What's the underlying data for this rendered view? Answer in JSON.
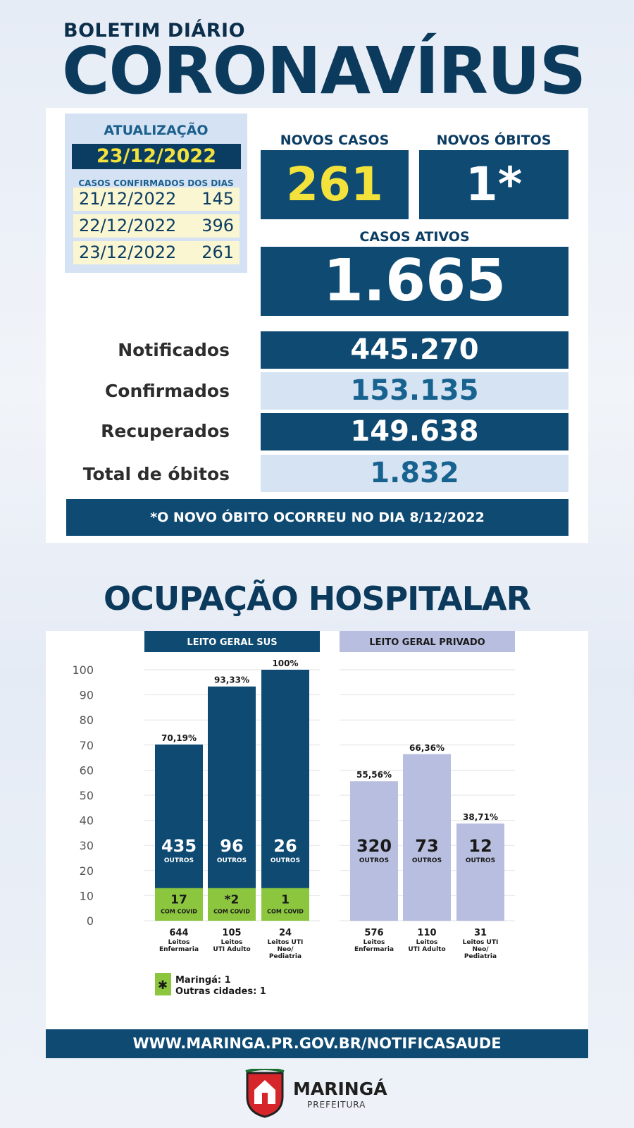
{
  "header": {
    "top_label": "BOLETIM DIÁRIO",
    "title": "CORONAVÍRUS"
  },
  "update": {
    "title": "ATUALIZAÇÃO",
    "date": "23/12/2022",
    "sub": "CASOS CONFIRMADOS DOS DIAS",
    "rows": [
      {
        "date": "21/12/2022",
        "value": "145"
      },
      {
        "date": "22/12/2022",
        "value": "396"
      },
      {
        "date": "23/12/2022",
        "value": "261"
      }
    ]
  },
  "new_cases": {
    "label": "NOVOS CASOS",
    "value": "261"
  },
  "new_deaths": {
    "label": "NOVOS ÓBITOS",
    "value": "1*"
  },
  "active": {
    "label": "CASOS ATIVOS",
    "value": "1.665"
  },
  "stats": [
    {
      "label": "Notificados",
      "value": "445.270"
    },
    {
      "label": "Confirmados",
      "value": "153.135"
    },
    {
      "label": "Recuperados",
      "value": "149.638"
    },
    {
      "label": "Total de óbitos",
      "value": "1.832"
    }
  ],
  "note": "*O NOVO  ÓBITO OCORREU NO DIA 8/12/2022",
  "occupancy_title": "OCUPAÇÃO HOSPITALAR",
  "footer_url": "WWW.MARINGA.PR.GOV.BR/NOTIFICASAUDE",
  "logo": {
    "name": "MARINGÁ",
    "sub": "PREFEITURA"
  },
  "colors": {
    "navy": "#0e4a72",
    "lavender": "#b7bedf",
    "green": "#8cc63f",
    "yellow": "#f3e23b"
  },
  "chart_data": {
    "type": "bar",
    "ylim": [
      0,
      100
    ],
    "yticks": [
      "0",
      "10",
      "20",
      "30",
      "40",
      "50",
      "60",
      "70",
      "80",
      "90",
      "100"
    ],
    "groups": [
      {
        "name": "LEITO GERAL SUS",
        "bars": [
          {
            "pct": 70.19,
            "pct_label": "70,19%",
            "others": "435",
            "others_label": "OUTROS",
            "covid": "17",
            "covid_label": "COM COVID",
            "covid_pct": 13,
            "beds": "644",
            "category": [
              "Leitos",
              "Enfermaria"
            ]
          },
          {
            "pct": 93.33,
            "pct_label": "93,33%",
            "others": "96",
            "others_label": "OUTROS",
            "covid": "*2",
            "covid_label": "COM COVID",
            "covid_pct": 13,
            "beds": "105",
            "category": [
              "Leitos",
              "UTI Adulto"
            ]
          },
          {
            "pct": 100,
            "pct_label": "100%",
            "others": "26",
            "others_label": "OUTROS",
            "covid": "1",
            "covid_label": "COM COVID",
            "covid_pct": 13,
            "beds": "24",
            "category": [
              "Leitos UTI",
              "Neo/",
              "Pediatria"
            ]
          }
        ]
      },
      {
        "name": "LEITO GERAL PRIVADO",
        "bars": [
          {
            "pct": 55.56,
            "pct_label": "55,56%",
            "others": "320",
            "others_label": "OUTROS",
            "beds": "576",
            "category": [
              "Leitos",
              "Enfermaria"
            ]
          },
          {
            "pct": 66.36,
            "pct_label": "66,36%",
            "others": "73",
            "others_label": "OUTROS",
            "beds": "110",
            "category": [
              "Leitos",
              "UTI Adulto"
            ]
          },
          {
            "pct": 38.71,
            "pct_label": "38,71%",
            "others": "12",
            "others_label": "OUTROS",
            "beds": "31",
            "category": [
              "Leitos UTI",
              "Neo/",
              "Pediatria"
            ]
          }
        ]
      }
    ],
    "legend": {
      "symbol": "✱",
      "lines": [
        "Maringá: 1",
        "Outras cidades: 1"
      ]
    }
  }
}
